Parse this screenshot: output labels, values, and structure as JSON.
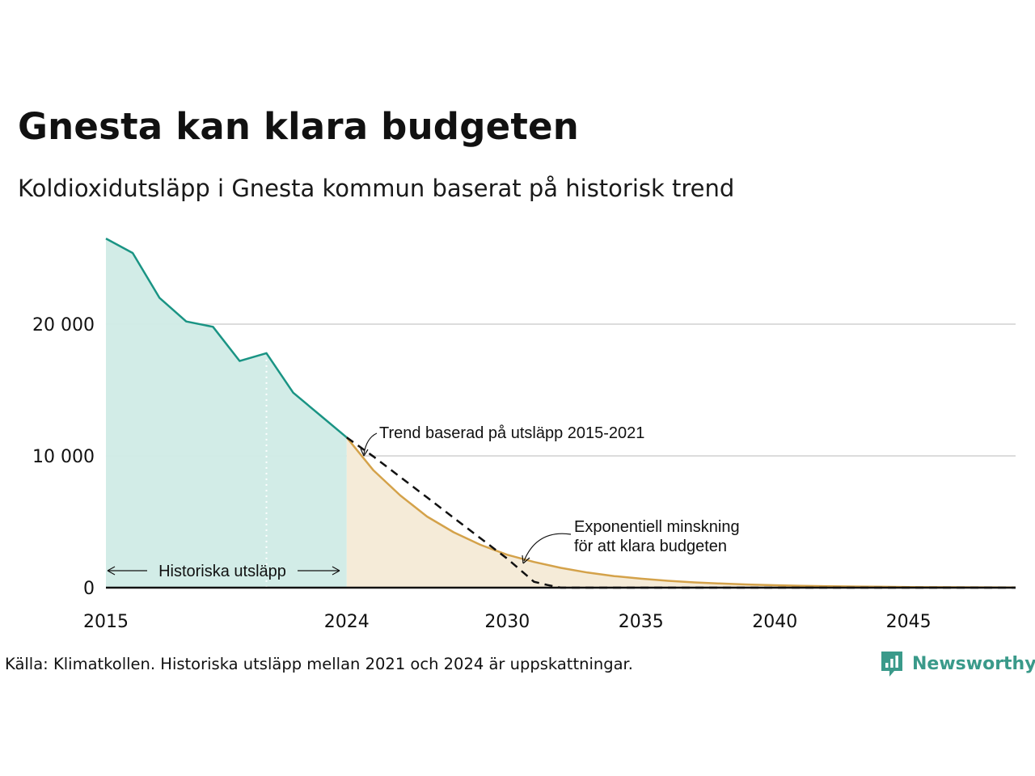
{
  "chart_data": {
    "type": "area",
    "title": "Gnesta kan klara budgeten",
    "subtitle": "Koldioxidutsläpp i Gnesta kommun baserat på historisk trend",
    "xlim": [
      2015,
      2049
    ],
    "ylim": [
      0,
      26000
    ],
    "x_ticks": [
      2015,
      2024,
      2030,
      2035,
      2040,
      2045
    ],
    "y_ticks": [
      {
        "value": 0,
        "label": "0"
      },
      {
        "value": 10000,
        "label": "10 000"
      },
      {
        "value": 20000,
        "label": "20 000"
      }
    ],
    "grid": "horizontal",
    "estimate_start_year": 2021,
    "series": [
      {
        "name": "Historiska utsläpp",
        "color": "#1a9484",
        "fill": "#d0ebe6",
        "x": [
          2015,
          2016,
          2017,
          2018,
          2019,
          2020,
          2021,
          2022,
          2023,
          2024
        ],
        "values": [
          26500,
          25400,
          22000,
          20200,
          19800,
          17200,
          17800,
          14800,
          13100,
          11400
        ]
      },
      {
        "name": "Exponentiell minskning för att klara budgeten",
        "color": "#d4a24a",
        "fill": "#f5ebd8",
        "x": [
          2024,
          2025,
          2026,
          2027,
          2028,
          2029,
          2030,
          2031,
          2032,
          2033,
          2034,
          2035,
          2036,
          2037,
          2038,
          2039,
          2040,
          2041,
          2042,
          2043,
          2044,
          2045,
          2046,
          2047,
          2048,
          2049
        ],
        "values": [
          11400,
          8900,
          7000,
          5400,
          4200,
          3250,
          2500,
          1950,
          1500,
          1150,
          880,
          680,
          520,
          400,
          310,
          240,
          185,
          140,
          110,
          85,
          65,
          50,
          38,
          29,
          22,
          17
        ]
      },
      {
        "name": "Trend baserad på utsläpp 2015-2021",
        "style": "dashed",
        "color": "#111111",
        "x": [
          2024,
          2025,
          2026,
          2027,
          2028,
          2029,
          2030,
          2031,
          2031.5,
          2032,
          2033,
          2049
        ],
        "values": [
          11400,
          9950,
          8400,
          6850,
          5300,
          3750,
          2200,
          450,
          200,
          0,
          0,
          0
        ]
      }
    ],
    "annotations": {
      "historic_label": "Historiska utsläpp",
      "trend_label": "Trend baserad på utsläpp 2015-2021",
      "exp_label_line1": "Exponentiell minskning",
      "exp_label_line2": "för att klara budgeten"
    }
  },
  "footer": {
    "source": "Källa: Klimatkollen. Historiska utsläpp mellan 2021 och 2024 är uppskattningar.",
    "brand": "Newsworthy",
    "brand_icon": "newsworthy-logo-icon",
    "brand_color": "#3a9a8a"
  }
}
